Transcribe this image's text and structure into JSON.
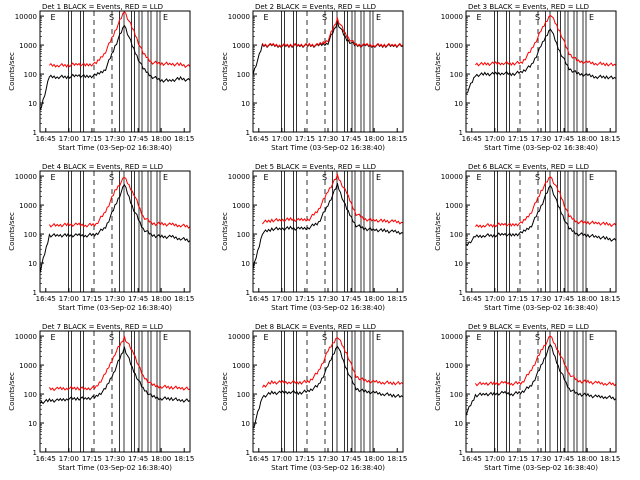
{
  "figure": {
    "colors": {
      "events": "#000000",
      "lld": "#ff0000",
      "axes": "#000000",
      "background": "#ffffff"
    }
  },
  "chart_data": [
    {
      "type": "line",
      "title": "Det 1  BLACK = Events, RED = LLD",
      "xlabel": "Start Time (03-Sep-02 16:38:40)",
      "ylabel": "Counts/sec",
      "yscale": "log",
      "ylim": [
        1,
        15000
      ],
      "x_tick_labels": [
        "16:45",
        "17:00",
        "17:15",
        "17:30",
        "17:45",
        "18:00",
        "18:15"
      ],
      "y_tick_labels": [
        "1",
        "10",
        "100",
        "1000",
        "10000"
      ],
      "interval_markers": [
        "E",
        "S",
        "E"
      ],
      "series": [
        {
          "name": "Events",
          "values": [
            5,
            80,
            80,
            80,
            90,
            80,
            90,
            150,
            900,
            5000,
            700,
            150,
            80,
            60,
            60,
            70,
            60
          ]
        },
        {
          "name": "LLD",
          "values": [
            null,
            200,
            200,
            200,
            220,
            200,
            230,
            600,
            3000,
            15000,
            3000,
            500,
            250,
            230,
            220,
            210,
            180
          ]
        }
      ]
    },
    {
      "type": "line",
      "title": "Det 2  BLACK = Events, RED = LLD",
      "xlabel": "Start Time (03-Sep-02 16:38:40)",
      "ylabel": "Counts/sec",
      "yscale": "log",
      "ylim": [
        1,
        15000
      ],
      "x_tick_labels": [
        "16:45",
        "17:00",
        "17:15",
        "17:30",
        "17:45",
        "18:00",
        "18:15"
      ],
      "y_tick_labels": [
        "1",
        "10",
        "100",
        "1000",
        "10000"
      ],
      "interval_markers": [
        "E",
        "S",
        "E"
      ],
      "series": [
        {
          "name": "Events",
          "values": [
            100,
            950,
            950,
            950,
            950,
            950,
            950,
            950,
            1200,
            6000,
            1500,
            950,
            950,
            950,
            950,
            950,
            950
          ]
        },
        {
          "name": "LLD",
          "values": [
            null,
            1000,
            1000,
            1000,
            1000,
            1000,
            1000,
            1000,
            1500,
            8000,
            2000,
            1000,
            1000,
            1000,
            1000,
            1000,
            1000
          ]
        }
      ]
    },
    {
      "type": "line",
      "title": "Det 3  BLACK = Events, RED = LLD",
      "xlabel": "Start Time (03-Sep-02 16:38:40)",
      "ylabel": "Counts/sec",
      "yscale": "log",
      "ylim": [
        1,
        15000
      ],
      "x_tick_labels": [
        "16:45",
        "17:00",
        "17:15",
        "17:30",
        "17:45",
        "18:00",
        "18:15"
      ],
      "y_tick_labels": [
        "1",
        "10",
        "100",
        "1000",
        "10000"
      ],
      "interval_markers": [
        "E",
        "S",
        "E"
      ],
      "series": [
        {
          "name": "Events",
          "values": [
            20,
            90,
            100,
            100,
            110,
            100,
            120,
            200,
            900,
            4000,
            600,
            150,
            100,
            90,
            80,
            80,
            70
          ]
        },
        {
          "name": "LLD",
          "values": [
            null,
            220,
            220,
            230,
            240,
            230,
            250,
            700,
            3000,
            12000,
            3000,
            500,
            270,
            250,
            230,
            220,
            200
          ]
        }
      ]
    },
    {
      "type": "line",
      "title": "Det 4  BLACK = Events, RED = LLD",
      "xlabel": "Start Time (03-Sep-02 16:38:40)",
      "ylabel": "Counts/sec",
      "yscale": "log",
      "ylim": [
        1,
        15000
      ],
      "x_tick_labels": [
        "16:45",
        "17:00",
        "17:15",
        "17:30",
        "17:45",
        "18:00",
        "18:15"
      ],
      "y_tick_labels": [
        "1",
        "10",
        "100",
        "1000",
        "10000"
      ],
      "interval_markers": [
        "E",
        "S",
        "E"
      ],
      "series": [
        {
          "name": "Events",
          "values": [
            5,
            90,
            90,
            90,
            90,
            90,
            100,
            170,
            900,
            5000,
            700,
            150,
            90,
            80,
            80,
            70,
            60
          ]
        },
        {
          "name": "LLD",
          "values": [
            null,
            200,
            200,
            210,
            210,
            200,
            220,
            600,
            3000,
            9000,
            2500,
            400,
            230,
            220,
            210,
            200,
            180
          ]
        }
      ]
    },
    {
      "type": "line",
      "title": "Det 5  BLACK = Events, RED = LLD",
      "xlabel": "Start Time (03-Sep-02 16:38:40)",
      "ylabel": "Counts/sec",
      "yscale": "log",
      "ylim": [
        1,
        15000
      ],
      "x_tick_labels": [
        "16:45",
        "17:00",
        "17:15",
        "17:30",
        "17:45",
        "18:00",
        "18:15"
      ],
      "y_tick_labels": [
        "1",
        "10",
        "100",
        "1000",
        "10000"
      ],
      "interval_markers": [
        "E",
        "S",
        "E"
      ],
      "series": [
        {
          "name": "Events",
          "values": [
            6,
            110,
            150,
            150,
            160,
            150,
            170,
            250,
            1000,
            5000,
            700,
            200,
            150,
            140,
            130,
            120,
            110
          ]
        },
        {
          "name": "LLD",
          "values": [
            null,
            250,
            300,
            300,
            320,
            300,
            330,
            700,
            3000,
            10000,
            2500,
            500,
            320,
            300,
            280,
            270,
            250
          ]
        }
      ]
    },
    {
      "type": "line",
      "title": "Det 6  BLACK = Events, RED = LLD",
      "xlabel": "Start Time (03-Sep-02 16:38:40)",
      "ylabel": "Counts/sec",
      "yscale": "log",
      "ylim": [
        1,
        15000
      ],
      "x_tick_labels": [
        "16:45",
        "17:00",
        "17:15",
        "17:30",
        "17:45",
        "18:00",
        "18:15"
      ],
      "y_tick_labels": [
        "1",
        "10",
        "100",
        "1000",
        "10000"
      ],
      "interval_markers": [
        "E",
        "S",
        "E"
      ],
      "series": [
        {
          "name": "Events",
          "values": [
            40,
            80,
            90,
            90,
            100,
            90,
            110,
            200,
            900,
            5000,
            700,
            150,
            100,
            90,
            80,
            70,
            60
          ]
        },
        {
          "name": "LLD",
          "values": [
            null,
            180,
            200,
            200,
            220,
            200,
            240,
            600,
            3000,
            10000,
            2500,
            400,
            260,
            250,
            240,
            220,
            200
          ]
        }
      ]
    },
    {
      "type": "line",
      "title": "Det 7  BLACK = Events, RED = LLD",
      "xlabel": "Start Time (03-Sep-02 16:38:40)",
      "ylabel": "Counts/sec",
      "yscale": "log",
      "ylim": [
        1,
        15000
      ],
      "x_tick_labels": [
        "16:45",
        "17:00",
        "17:15",
        "17:30",
        "17:45",
        "18:00",
        "18:15"
      ],
      "y_tick_labels": [
        "1",
        "10",
        "100",
        "1000",
        "10000"
      ],
      "interval_markers": [
        "E",
        "S",
        "E"
      ],
      "series": [
        {
          "name": "Events",
          "values": [
            50,
            60,
            60,
            70,
            70,
            70,
            80,
            150,
            700,
            4000,
            600,
            150,
            80,
            70,
            70,
            60,
            60
          ]
        },
        {
          "name": "LLD",
          "values": [
            null,
            150,
            150,
            160,
            160,
            150,
            170,
            500,
            2500,
            9000,
            2500,
            400,
            200,
            180,
            170,
            160,
            150
          ]
        }
      ]
    },
    {
      "type": "line",
      "title": "Det 8  BLACK = Events, RED = LLD",
      "xlabel": "Start Time (03-Sep-02 16:38:40)",
      "ylabel": "Counts/sec",
      "yscale": "log",
      "ylim": [
        1,
        15000
      ],
      "x_tick_labels": [
        "16:45",
        "17:00",
        "17:15",
        "17:30",
        "17:45",
        "18:00",
        "18:15"
      ],
      "y_tick_labels": [
        "1",
        "10",
        "100",
        "1000",
        "10000"
      ],
      "interval_markers": [
        "E",
        "S",
        "E"
      ],
      "series": [
        {
          "name": "Events",
          "values": [
            6,
            80,
            110,
            110,
            120,
            110,
            130,
            200,
            900,
            5000,
            700,
            150,
            120,
            110,
            100,
            90,
            80
          ]
        },
        {
          "name": "LLD",
          "values": [
            null,
            180,
            250,
            250,
            260,
            250,
            270,
            600,
            3000,
            10000,
            2500,
            400,
            280,
            260,
            250,
            240,
            230
          ]
        }
      ]
    },
    {
      "type": "line",
      "title": "Det 9  BLACK = Events, RED = LLD",
      "xlabel": "Start Time (03-Sep-02 16:38:40)",
      "ylabel": "Counts/sec",
      "yscale": "log",
      "ylim": [
        1,
        15000
      ],
      "x_tick_labels": [
        "16:45",
        "17:00",
        "17:15",
        "17:30",
        "17:45",
        "18:00",
        "18:15"
      ],
      "y_tick_labels": [
        "1",
        "10",
        "100",
        "1000",
        "10000"
      ],
      "interval_markers": [
        "E",
        "S",
        "E"
      ],
      "series": [
        {
          "name": "Events",
          "values": [
            20,
            90,
            100,
            100,
            110,
            100,
            120,
            200,
            900,
            5000,
            700,
            150,
            100,
            90,
            80,
            80,
            70
          ]
        },
        {
          "name": "LLD",
          "values": [
            null,
            220,
            230,
            230,
            240,
            230,
            250,
            700,
            3000,
            10000,
            2500,
            500,
            280,
            260,
            240,
            230,
            220
          ]
        }
      ]
    }
  ]
}
